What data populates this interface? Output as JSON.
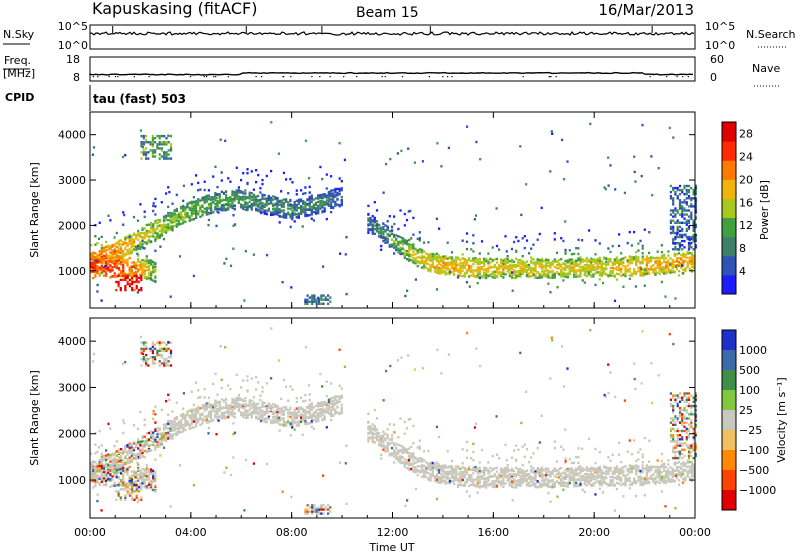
{
  "header": {
    "station": "Kapuskasing (fitACF)",
    "beam": "Beam 15",
    "date": "16/Mar/2013"
  },
  "nsky_panel": {
    "left_label": "N.Sky",
    "right_label": "N.Search",
    "left_ticks": [
      "10^5",
      "10^0"
    ],
    "right_ticks": [
      "10^5",
      "10^0"
    ]
  },
  "freq_panel": {
    "left_label_1": "Freq.",
    "left_label_2": "[MHz]",
    "right_label": "Nave",
    "left_ticks": [
      "18",
      "8"
    ],
    "right_ticks": [
      "60",
      "0"
    ]
  },
  "cpid": {
    "label": "CPID",
    "mode": "tau (fast) 503"
  },
  "time_axis": {
    "label": "Time UT",
    "ticks": [
      "00:00",
      "04:00",
      "08:00",
      "12:00",
      "16:00",
      "20:00",
      "00:00"
    ]
  },
  "chart_data": [
    {
      "type": "heatmap",
      "panel": "power",
      "ylabel": "Slant Range [km]",
      "ylim": [
        180,
        4500
      ],
      "yticks": [
        1000,
        2000,
        3000,
        4000
      ],
      "xlim_hours": [
        0,
        24
      ],
      "colorbar_label": "Power [dB]",
      "colorbar_ticks": [
        4,
        8,
        12,
        16,
        20,
        24,
        28
      ],
      "colorbar_range": [
        0,
        30
      ],
      "colors": [
        "#1c1cff",
        "#2f52b6",
        "#3f7f6a",
        "#3fa03f",
        "#a8c81e",
        "#f0b40a",
        "#ff7a00",
        "#ff2a00",
        "#e00000"
      ],
      "echo_bands": [
        {
          "description": "main ionospheric band",
          "t": [
            0,
            1,
            2,
            3,
            4,
            5,
            6,
            7,
            8,
            9,
            10
          ],
          "range_km": [
            1200,
            1450,
            1750,
            2050,
            2350,
            2550,
            2600,
            2480,
            2380,
            2480,
            2680
          ],
          "strength_db": [
            24,
            22,
            18,
            16,
            14,
            12,
            12,
            10,
            10,
            10,
            8
          ]
        },
        {
          "description": "near range band",
          "t": [
            0,
            1,
            2,
            2.6
          ],
          "range_km": [
            1150,
            1100,
            1080,
            1000
          ],
          "strength_db": [
            26,
            26,
            20,
            14
          ]
        },
        {
          "description": "afternoon band",
          "t": [
            11,
            12,
            13,
            14,
            16,
            18,
            20,
            22,
            23,
            24
          ],
          "range_km": [
            2100,
            1700,
            1300,
            1120,
            1080,
            1080,
            1100,
            1130,
            1180,
            1260
          ],
          "strength_db": [
            8,
            12,
            18,
            20,
            18,
            18,
            18,
            20,
            20,
            20
          ]
        }
      ],
      "patches": [
        {
          "t": [
            1.0,
            2.0
          ],
          "range_km": [
            600,
            950
          ],
          "strength_db": 28
        },
        {
          "t": [
            2.0,
            3.2
          ],
          "range_km": [
            3500,
            4000
          ],
          "strength_db": 10
        },
        {
          "t": [
            8.5,
            9.5
          ],
          "range_km": [
            300,
            500
          ],
          "strength_db": 8
        },
        {
          "t": [
            23.0,
            24.0
          ],
          "range_km": [
            1500,
            2900
          ],
          "strength_db": 6
        }
      ]
    },
    {
      "type": "heatmap",
      "panel": "velocity",
      "ylabel": "Slant Range [km]",
      "ylim": [
        180,
        4500
      ],
      "yticks": [
        1000,
        2000,
        3000,
        4000
      ],
      "xlim_hours": [
        0,
        24
      ],
      "colorbar_label": "Velocity [m s⁻¹]",
      "colorbar_ticks": [
        "1000",
        "500",
        "100",
        "25",
        "−25",
        "−100",
        "−500",
        "−1000"
      ],
      "colors": [
        "#1c2fc8",
        "#3c6aa8",
        "#3f8f4a",
        "#7fc83f",
        "#c8c8bc",
        "#f0c060",
        "#ff8a00",
        "#ff4400",
        "#e00000"
      ],
      "ground_scatter_color": "#c8c8bc",
      "notes": "most echoes are ground scatter (grey); green and orange patches near 00:00-03:00 and scattered elsewhere"
    }
  ]
}
